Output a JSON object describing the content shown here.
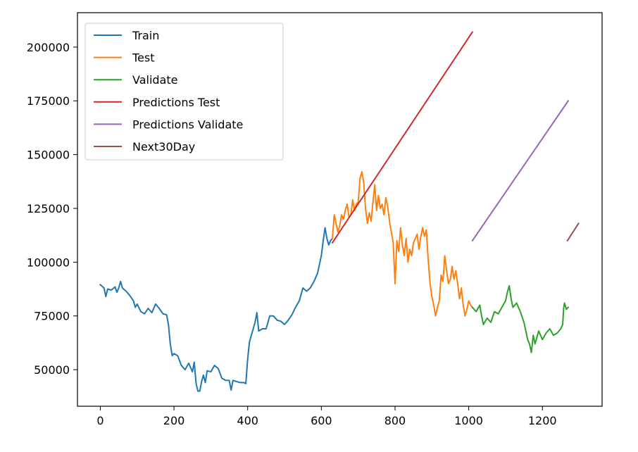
{
  "chart_data": {
    "type": "line",
    "title": "",
    "xlabel": "",
    "ylabel": "",
    "xlim": [
      -62,
      1362
    ],
    "ylim": [
      33000,
      216000
    ],
    "x_ticks": [
      0,
      200,
      400,
      600,
      800,
      1000,
      1200
    ],
    "x_tick_labels": [
      "0",
      "200",
      "400",
      "600",
      "800",
      "1000",
      "1200"
    ],
    "y_ticks": [
      50000,
      75000,
      100000,
      125000,
      150000,
      175000,
      200000
    ],
    "y_tick_labels": [
      "50000",
      "75000",
      "100000",
      "125000",
      "150000",
      "175000",
      "200000"
    ],
    "grid": false,
    "legend_position": "top-left",
    "series": [
      {
        "name": "Train",
        "color": "#1f77b4",
        "points": [
          [
            0,
            89500
          ],
          [
            10,
            88000
          ],
          [
            15,
            84000
          ],
          [
            20,
            87500
          ],
          [
            30,
            87000
          ],
          [
            40,
            88500
          ],
          [
            45,
            86000
          ],
          [
            50,
            88000
          ],
          [
            55,
            91000
          ],
          [
            60,
            88000
          ],
          [
            70,
            86500
          ],
          [
            80,
            84500
          ],
          [
            90,
            82000
          ],
          [
            95,
            79000
          ],
          [
            100,
            80500
          ],
          [
            110,
            77000
          ],
          [
            120,
            76000
          ],
          [
            130,
            78500
          ],
          [
            140,
            76500
          ],
          [
            150,
            80500
          ],
          [
            160,
            78500
          ],
          [
            170,
            76000
          ],
          [
            180,
            75500
          ],
          [
            185,
            71000
          ],
          [
            190,
            62000
          ],
          [
            195,
            56500
          ],
          [
            200,
            57500
          ],
          [
            210,
            56500
          ],
          [
            220,
            52000
          ],
          [
            230,
            50000
          ],
          [
            240,
            53000
          ],
          [
            250,
            49000
          ],
          [
            255,
            53500
          ],
          [
            260,
            43500
          ],
          [
            265,
            40000
          ],
          [
            270,
            40000
          ],
          [
            275,
            44500
          ],
          [
            280,
            47500
          ],
          [
            285,
            44000
          ],
          [
            290,
            49500
          ],
          [
            300,
            49000
          ],
          [
            310,
            52000
          ],
          [
            320,
            50500
          ],
          [
            330,
            46000
          ],
          [
            340,
            45000
          ],
          [
            350,
            45000
          ],
          [
            355,
            40500
          ],
          [
            360,
            45000
          ],
          [
            370,
            44500
          ],
          [
            380,
            44000
          ],
          [
            390,
            44000
          ],
          [
            395,
            43500
          ],
          [
            400,
            55000
          ],
          [
            405,
            63000
          ],
          [
            410,
            66000
          ],
          [
            415,
            69000
          ],
          [
            420,
            72000
          ],
          [
            425,
            76500
          ],
          [
            430,
            68000
          ],
          [
            440,
            69000
          ],
          [
            450,
            69000
          ],
          [
            460,
            75000
          ],
          [
            470,
            75000
          ],
          [
            480,
            73000
          ],
          [
            490,
            72500
          ],
          [
            500,
            71000
          ],
          [
            510,
            73000
          ],
          [
            520,
            75500
          ],
          [
            530,
            79000
          ],
          [
            540,
            82000
          ],
          [
            550,
            88000
          ],
          [
            560,
            86500
          ],
          [
            570,
            88000
          ],
          [
            580,
            91000
          ],
          [
            590,
            95000
          ],
          [
            600,
            103000
          ],
          [
            605,
            110000
          ],
          [
            610,
            116000
          ],
          [
            615,
            111000
          ],
          [
            620,
            108000
          ],
          [
            625,
            110000
          ],
          [
            630,
            111000
          ]
        ]
      },
      {
        "name": "Test",
        "color": "#ff7f0e",
        "points": [
          [
            630,
            111000
          ],
          [
            635,
            122000
          ],
          [
            640,
            118000
          ],
          [
            645,
            114000
          ],
          [
            650,
            117000
          ],
          [
            655,
            122000
          ],
          [
            660,
            120000
          ],
          [
            665,
            124000
          ],
          [
            670,
            127000
          ],
          [
            675,
            121000
          ],
          [
            680,
            122000
          ],
          [
            685,
            129000
          ],
          [
            690,
            124000
          ],
          [
            695,
            127000
          ],
          [
            700,
            128000
          ],
          [
            705,
            139000
          ],
          [
            710,
            142000
          ],
          [
            715,
            137000
          ],
          [
            720,
            125000
          ],
          [
            725,
            118000
          ],
          [
            730,
            123000
          ],
          [
            735,
            119000
          ],
          [
            740,
            128000
          ],
          [
            745,
            136000
          ],
          [
            750,
            124000
          ],
          [
            755,
            131000
          ],
          [
            760,
            125000
          ],
          [
            765,
            127000
          ],
          [
            770,
            122000
          ],
          [
            775,
            130000
          ],
          [
            780,
            126000
          ],
          [
            785,
            119000
          ],
          [
            790,
            114000
          ],
          [
            795,
            109000
          ],
          [
            800,
            90000
          ],
          [
            805,
            110000
          ],
          [
            810,
            105000
          ],
          [
            815,
            116000
          ],
          [
            820,
            108000
          ],
          [
            825,
            103000
          ],
          [
            830,
            111000
          ],
          [
            835,
            100000
          ],
          [
            840,
            106000
          ],
          [
            845,
            103000
          ],
          [
            850,
            109000
          ],
          [
            855,
            111000
          ],
          [
            860,
            113000
          ],
          [
            865,
            106000
          ],
          [
            870,
            112000
          ],
          [
            875,
            116000
          ],
          [
            880,
            112000
          ],
          [
            885,
            115000
          ],
          [
            890,
            101000
          ],
          [
            895,
            90000
          ],
          [
            900,
            84000
          ],
          [
            905,
            80000
          ],
          [
            910,
            75000
          ],
          [
            915,
            79000
          ],
          [
            920,
            82000
          ],
          [
            925,
            94000
          ],
          [
            930,
            91000
          ],
          [
            935,
            103000
          ],
          [
            940,
            96000
          ],
          [
            945,
            90000
          ],
          [
            950,
            92000
          ],
          [
            955,
            98000
          ],
          [
            960,
            92000
          ],
          [
            965,
            96000
          ],
          [
            970,
            90000
          ],
          [
            975,
            83000
          ],
          [
            980,
            88000
          ],
          [
            985,
            80000
          ],
          [
            990,
            75000
          ],
          [
            995,
            78000
          ],
          [
            1000,
            82000
          ],
          [
            1005,
            80000
          ],
          [
            1010,
            79000
          ]
        ]
      },
      {
        "name": "Validate",
        "color": "#2ca02c",
        "points": [
          [
            1010,
            79000
          ],
          [
            1020,
            77000
          ],
          [
            1030,
            80000
          ],
          [
            1035,
            75000
          ],
          [
            1040,
            71000
          ],
          [
            1050,
            74000
          ],
          [
            1060,
            72000
          ],
          [
            1070,
            77000
          ],
          [
            1080,
            76000
          ],
          [
            1090,
            79000
          ],
          [
            1100,
            82000
          ],
          [
            1105,
            86000
          ],
          [
            1110,
            89000
          ],
          [
            1115,
            83000
          ],
          [
            1120,
            79000
          ],
          [
            1130,
            81000
          ],
          [
            1140,
            77000
          ],
          [
            1150,
            72000
          ],
          [
            1155,
            68000
          ],
          [
            1160,
            64000
          ],
          [
            1165,
            62000
          ],
          [
            1170,
            58000
          ],
          [
            1175,
            66000
          ],
          [
            1180,
            62000
          ],
          [
            1190,
            68000
          ],
          [
            1200,
            64000
          ],
          [
            1210,
            67000
          ],
          [
            1220,
            69000
          ],
          [
            1230,
            66000
          ],
          [
            1240,
            67000
          ],
          [
            1250,
            69000
          ],
          [
            1255,
            71000
          ],
          [
            1258,
            79000
          ],
          [
            1260,
            81000
          ],
          [
            1265,
            78000
          ],
          [
            1270,
            79000
          ]
        ]
      },
      {
        "name": "Predictions Test",
        "color": "#d62728",
        "points": [
          [
            630,
            109000
          ],
          [
            1010,
            207000
          ]
        ]
      },
      {
        "name": "Predictions Validate",
        "color": "#9467bd",
        "points": [
          [
            1010,
            110000
          ],
          [
            1270,
            175000
          ]
        ]
      },
      {
        "name": "Next30Day",
        "color": "#8c564b",
        "points": [
          [
            1268,
            110000
          ],
          [
            1298,
            118000
          ]
        ]
      }
    ]
  }
}
